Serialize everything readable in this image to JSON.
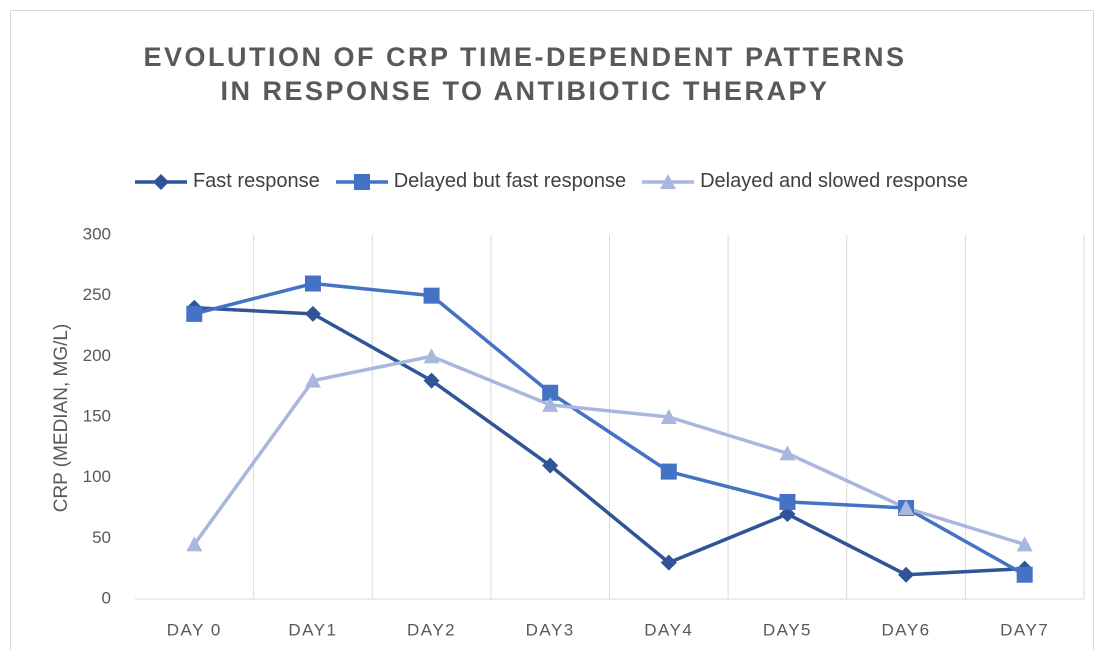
{
  "chart_data": {
    "type": "line",
    "title": "EVOLUTION OF CRP TIME-DEPENDENT PATTERNS IN RESPONSE TO ANTIBIOTIC THERAPY",
    "y_label": "CRP (MEDIAN, MG/L)",
    "categories": [
      "DAY 0",
      "DAY1",
      "DAY2",
      "DAY3",
      "DAY4",
      "DAY5",
      "DAY6",
      "DAY7"
    ],
    "series": [
      {
        "name": "Fast response",
        "color": "#2f5597",
        "marker": "diamond",
        "values": [
          240,
          235,
          180,
          110,
          30,
          70,
          20,
          25
        ]
      },
      {
        "name": "Delayed but fast response",
        "color": "#4472c4",
        "marker": "square",
        "values": [
          235,
          260,
          250,
          170,
          105,
          80,
          75,
          20
        ]
      },
      {
        "name": "Delayed and slowed response",
        "color": "#a9b6dd",
        "marker": "triangle",
        "values": [
          45,
          180,
          200,
          160,
          150,
          120,
          75,
          45
        ]
      }
    ],
    "ylim": [
      0,
      300
    ],
    "yticks": [
      0,
      50,
      100,
      150,
      200,
      250,
      300
    ],
    "x_grid": true,
    "legend": "top"
  }
}
